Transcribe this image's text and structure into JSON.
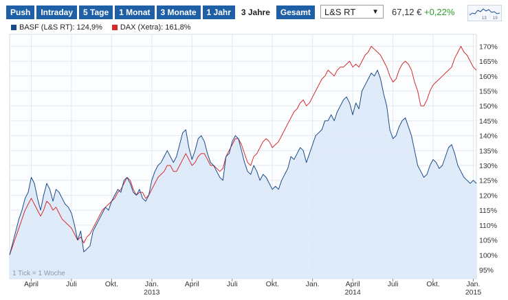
{
  "tabs": [
    {
      "label": "Push",
      "active": false
    },
    {
      "label": "Intraday",
      "active": false
    },
    {
      "label": "5 Tage",
      "active": false
    },
    {
      "label": "1 Monat",
      "active": false
    },
    {
      "label": "3 Monate",
      "active": false
    },
    {
      "label": "1 Jahr",
      "active": false
    },
    {
      "label": "3 Jahre",
      "active": true
    },
    {
      "label": "Gesamt",
      "active": false
    }
  ],
  "exchange": {
    "value": "L&S RT",
    "caret": "▼"
  },
  "quote": {
    "price": "67,12 €",
    "change": "+0,22%"
  },
  "sparkline": {
    "labels": [
      "13",
      "19"
    ]
  },
  "colors": {
    "accent": "#1f5fa6",
    "basf": "#1a4a8a",
    "dax": "#d42a2a",
    "fill": "#dbe7f8",
    "up": "#2aa02a"
  },
  "chart_data": {
    "type": "line",
    "title": "",
    "legend_position": "top-left",
    "tick_note": "1 Tick = 1 Woche",
    "series": [
      {
        "name": "BASF (L&S RT): 124,9%",
        "color": "#1a4a8a",
        "fill": true,
        "values": [
          100,
          104,
          108,
          112,
          115,
          119,
          121,
          126,
          124,
          119,
          115,
          120,
          124,
          122,
          118,
          122,
          121,
          119,
          117,
          116,
          114,
          110,
          105,
          108,
          101,
          102,
          103,
          108,
          110,
          112,
          114,
          116,
          115,
          118,
          120,
          122,
          121,
          125,
          126,
          124,
          121,
          120,
          122,
          119,
          118,
          120,
          125,
          128,
          130,
          131,
          133,
          135,
          133,
          131,
          133,
          137,
          141,
          142,
          136,
          132,
          135,
          139,
          140,
          138,
          134,
          131,
          130,
          128,
          126,
          125,
          133,
          134,
          138,
          140,
          139,
          135,
          131,
          128,
          127,
          130,
          128,
          125,
          127,
          126,
          124,
          122,
          123,
          122,
          125,
          127,
          129,
          133,
          132,
          134,
          136,
          135,
          131,
          134,
          137,
          140,
          141,
          142,
          145,
          145,
          147,
          145,
          148,
          150,
          152,
          153,
          151,
          147,
          151,
          149,
          155,
          157,
          159,
          161,
          160,
          162,
          159,
          154,
          150,
          142,
          139,
          140,
          143,
          145,
          146,
          143,
          140,
          135,
          130,
          128,
          126,
          127,
          130,
          132,
          131,
          129,
          130,
          133,
          136,
          137,
          134,
          130,
          128,
          126,
          125,
          124,
          125,
          124
        ],
        "display": [
          100,
          104,
          108,
          112,
          115,
          119,
          121,
          126,
          124,
          119,
          115,
          120,
          124,
          122,
          118,
          122,
          121,
          119,
          117,
          116,
          114,
          110,
          105,
          108,
          101,
          102,
          103,
          108,
          110,
          112,
          114,
          116,
          115,
          118,
          120,
          122,
          121,
          125,
          126,
          124,
          121,
          120,
          122,
          119,
          118,
          120,
          125,
          128,
          130,
          131,
          133,
          135,
          133,
          131,
          133,
          137,
          141,
          142,
          136,
          132,
          135,
          139,
          140,
          138,
          134,
          131,
          130,
          128,
          126,
          125,
          133,
          134,
          138,
          140,
          139,
          135,
          131,
          128,
          127,
          130,
          128,
          125,
          127,
          126,
          124,
          122,
          123,
          122,
          125,
          127,
          129,
          133,
          132,
          134,
          136,
          135,
          131,
          134,
          137,
          140,
          141,
          142,
          145,
          145,
          147,
          145,
          148,
          150,
          152,
          153,
          151,
          147,
          151,
          149,
          155,
          157,
          159,
          161,
          160,
          162,
          159,
          154,
          150,
          142,
          139,
          140,
          143,
          145,
          146,
          143,
          140,
          135,
          130,
          128,
          126,
          127,
          130,
          132,
          131,
          129,
          130,
          133,
          136,
          137,
          134,
          130,
          128,
          126,
          125,
          124,
          125,
          124
        ]
      },
      {
        "name": "DAX (Xetra): 161,8%",
        "color": "#d42a2a",
        "fill": false,
        "values": [
          100,
          103,
          106,
          109,
          112,
          115,
          117,
          119,
          117,
          115,
          113,
          115,
          118,
          117,
          115,
          116,
          114,
          112,
          111,
          110,
          109,
          107,
          105,
          106,
          104,
          106,
          107,
          109,
          111,
          113,
          115,
          116,
          117,
          118,
          119,
          121,
          122,
          124,
          126,
          125,
          122,
          120,
          121,
          121,
          119,
          120,
          122,
          124,
          126,
          127,
          128,
          130,
          130,
          128,
          128,
          130,
          132,
          134,
          132,
          130,
          131,
          133,
          134,
          134,
          132,
          130,
          130,
          129,
          128,
          129,
          133,
          135,
          137,
          139,
          139,
          137,
          134,
          131,
          130,
          133,
          134,
          136,
          138,
          139,
          138,
          136,
          137,
          138,
          140,
          142,
          144,
          146,
          148,
          149,
          151,
          152,
          150,
          151,
          153,
          155,
          157,
          159,
          160,
          162,
          161,
          160,
          162,
          163,
          163,
          164,
          165,
          163,
          164,
          163,
          165,
          167,
          168,
          170,
          169,
          168,
          167,
          165,
          163,
          160,
          158,
          159,
          162,
          164,
          165,
          164,
          162,
          158,
          155,
          150,
          150,
          152,
          155,
          157,
          158,
          159,
          160,
          161,
          162,
          163,
          166,
          168,
          170,
          168,
          167,
          165,
          163,
          162
        ],
        "display": [
          100,
          103,
          106,
          109,
          112,
          115,
          117,
          119,
          117,
          115,
          113,
          115,
          118,
          117,
          115,
          116,
          114,
          112,
          111,
          110,
          109,
          107,
          105,
          106,
          104,
          106,
          107,
          109,
          111,
          113,
          115,
          116,
          117,
          118,
          119,
          121,
          122,
          124,
          126,
          125,
          122,
          120,
          121,
          121,
          119,
          120,
          122,
          124,
          126,
          127,
          128,
          130,
          130,
          128,
          128,
          130,
          132,
          134,
          132,
          130,
          131,
          133,
          134,
          134,
          132,
          130,
          130,
          129,
          128,
          129,
          133,
          135,
          137,
          139,
          139,
          137,
          134,
          131,
          130,
          133,
          134,
          136,
          138,
          139,
          138,
          136,
          137,
          138,
          140,
          142,
          144,
          146,
          148,
          149,
          151,
          152,
          150,
          151,
          153,
          155,
          157,
          159,
          160,
          162,
          161,
          160,
          162,
          163,
          163,
          164,
          165,
          163,
          164,
          163,
          165,
          167,
          168,
          170,
          169,
          168,
          167,
          165,
          163,
          160,
          158,
          159,
          162,
          164,
          165,
          164,
          162,
          158,
          155,
          150,
          150,
          152,
          155,
          157,
          158,
          159,
          160,
          161,
          162,
          163,
          166,
          168,
          170,
          168,
          167,
          165,
          163,
          162
        ]
      }
    ],
    "ylim": [
      92,
      174
    ],
    "yticks": [
      95,
      100,
      105,
      110,
      115,
      120,
      125,
      130,
      135,
      140,
      145,
      150,
      155,
      160,
      165,
      170
    ],
    "ytick_suffix": "%",
    "xticks": [
      {
        "label": "April",
        "week": 7
      },
      {
        "label": "Juli",
        "week": 20
      },
      {
        "label": "Okt.",
        "week": 33
      },
      {
        "label": "Jan.",
        "week": 46,
        "sub": "2013"
      },
      {
        "label": "April",
        "week": 59
      },
      {
        "label": "Juli",
        "week": 72
      },
      {
        "label": "Okt.",
        "week": 85
      },
      {
        "label": "Jan.",
        "week": 98
      },
      {
        "label": "April",
        "week": 111,
        "sub": "2014"
      },
      {
        "label": "Juli",
        "week": 124
      },
      {
        "label": "Okt.",
        "week": 137
      },
      {
        "label": "Jan.",
        "week": 150,
        "sub": "2015"
      }
    ],
    "grid": true
  }
}
